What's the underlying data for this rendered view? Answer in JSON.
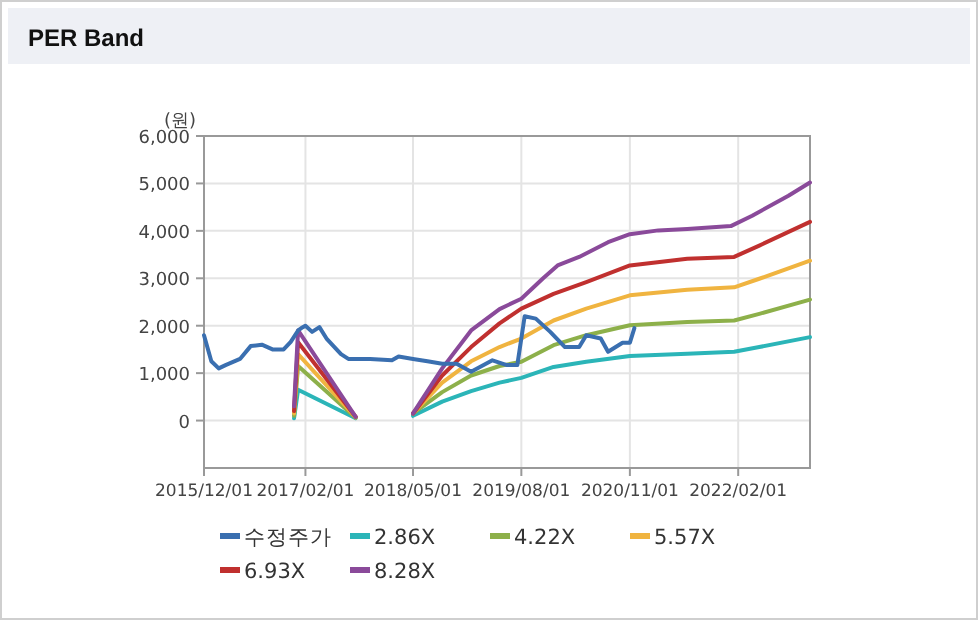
{
  "chart_data": {
    "type": "line",
    "title": "PER Band",
    "ylabel": "(원)",
    "xlim": [
      "2015-12-01",
      "2022-12-01"
    ],
    "ylim": [
      -1000,
      6000
    ],
    "xticks": [
      {
        "value": "2015-12-01",
        "label": "2015/12/01"
      },
      {
        "value": "2017-02-01",
        "label": "2017/02/01"
      },
      {
        "value": "2018-05-01",
        "label": "2018/05/01"
      },
      {
        "value": "2019-08-01",
        "label": "2019/08/01"
      },
      {
        "value": "2020-11-01",
        "label": "2020/11/01"
      },
      {
        "value": "2022-02-01",
        "label": "2022/02/01"
      }
    ],
    "yticks": [
      0,
      {
        "value": 1000,
        "label": "1,000"
      },
      {
        "value": 2000,
        "label": "2,000"
      },
      {
        "value": 3000,
        "label": "3,000"
      },
      {
        "value": 4000,
        "label": "4,000"
      },
      {
        "value": 5000,
        "label": "5,000"
      },
      {
        "value": 6000,
        "label": "6,000"
      }
    ],
    "grid": true,
    "legend": "bottom",
    "marker": "none",
    "line_style": "solid",
    "series": [
      {
        "name": "수정주가",
        "color": "#3a6fb0",
        "x": [
          "2015-12-01",
          "2016-01-01",
          "2016-02-01",
          "2016-03-01",
          "2016-05-01",
          "2016-06-15",
          "2016-08-01",
          "2016-09-15",
          "2016-11-01",
          "2016-12-01",
          "2017-01-01",
          "2017-01-15",
          "2017-02-01",
          "2017-03-01",
          "2017-04-01",
          "2017-05-01",
          "2017-07-01",
          "2017-08-01",
          "2017-11-01",
          "2018-02-01",
          "2018-03-01",
          "2018-05-01",
          "2018-07-01",
          "2018-09-01",
          "2018-11-01",
          "2019-01-01",
          "2019-04-01",
          "2019-06-01",
          "2019-07-15",
          "2019-08-15",
          "2019-10-01",
          "2019-12-01",
          "2020-02-01",
          "2020-04-01",
          "2020-05-01",
          "2020-07-01",
          "2020-08-01",
          "2020-10-01",
          "2020-11-01",
          "2020-11-20"
        ],
        "values": [
          1800,
          1250,
          1100,
          1170,
          1300,
          1570,
          1600,
          1500,
          1500,
          1660,
          1900,
          1950,
          2000,
          1870,
          1970,
          1730,
          1400,
          1300,
          1300,
          1270,
          1350,
          1300,
          1250,
          1200,
          1200,
          1030,
          1270,
          1170,
          1170,
          2200,
          2150,
          1870,
          1550,
          1550,
          1800,
          1730,
          1450,
          1640,
          1640,
          1950
        ]
      },
      {
        "name": "2.86X",
        "color": "#2bb5b8",
        "x": [
          "2016-12-15",
          "2017-01-01",
          "2017-09-01",
          "2018-01-01",
          "2018-05-01",
          "2018-09-01",
          "2019-01-01",
          "2019-05-01",
          "2019-08-01",
          "2019-12-15",
          "2020-05-01",
          "2020-11-01",
          "2021-07-01",
          "2022-01-15",
          "2022-05-01",
          "2022-12-01"
        ],
        "values": [
          50,
          650,
          50,
          null,
          100,
          400,
          620,
          800,
          900,
          1130,
          1240,
          1360,
          1410,
          1450,
          1550,
          1760
        ]
      },
      {
        "name": "4.22X",
        "color": "#8db04a",
        "x": [
          "2016-12-15",
          "2017-01-01",
          "2017-09-01",
          "2018-01-01",
          "2018-05-01",
          "2018-09-01",
          "2019-01-01",
          "2019-05-01",
          "2019-08-01",
          "2019-12-15",
          "2020-05-01",
          "2020-11-01",
          "2021-07-01",
          "2022-01-15",
          "2022-05-01",
          "2022-12-01"
        ],
        "values": [
          100,
          1150,
          60,
          null,
          150,
          600,
          950,
          1150,
          1240,
          1590,
          1800,
          2010,
          2080,
          2110,
          2250,
          2550
        ]
      },
      {
        "name": "5.57X",
        "color": "#f0b440",
        "x": [
          "2016-12-15",
          "2017-01-01",
          "2017-09-01",
          "2018-01-01",
          "2018-05-01",
          "2018-09-01",
          "2019-01-01",
          "2019-05-01",
          "2019-08-01",
          "2019-12-15",
          "2020-05-01",
          "2020-11-01",
          "2021-07-01",
          "2022-01-15",
          "2022-05-01",
          "2022-12-01"
        ],
        "values": [
          150,
          1400,
          70,
          null,
          150,
          800,
          1250,
          1550,
          1730,
          2110,
          2360,
          2640,
          2760,
          2810,
          2990,
          3370
        ]
      },
      {
        "name": "6.93X",
        "color": "#c0302f",
        "x": [
          "2016-12-15",
          "2017-01-01",
          "2017-09-01",
          "2018-01-01",
          "2018-05-01",
          "2018-09-01",
          "2019-01-01",
          "2019-05-01",
          "2019-08-01",
          "2019-12-15",
          "2020-05-01",
          "2020-11-01",
          "2021-07-01",
          "2022-01-15",
          "2022-05-01",
          "2022-12-01"
        ],
        "values": [
          200,
          1650,
          80,
          null,
          150,
          950,
          1550,
          2050,
          2360,
          2670,
          2920,
          3270,
          3410,
          3450,
          3690,
          4190
        ]
      },
      {
        "name": "8.28X",
        "color": "#8a4a9a",
        "x": [
          "2016-12-15",
          "2017-01-01",
          "2017-09-01",
          "2018-01-01",
          "2018-05-01",
          "2018-09-01",
          "2019-01-01",
          "2019-05-01",
          "2019-08-01",
          "2019-11-01",
          "2020-01-01",
          "2020-04-01",
          "2020-08-01",
          "2020-11-01",
          "2021-03-01",
          "2021-07-01",
          "2022-01-01",
          "2022-04-01",
          "2022-09-01",
          "2022-12-01"
        ],
        "values": [
          300,
          1900,
          80,
          null,
          150,
          1100,
          1900,
          2350,
          2570,
          3000,
          3270,
          3450,
          3760,
          3930,
          4010,
          4040,
          4100,
          4320,
          4740,
          5020
        ]
      }
    ]
  }
}
